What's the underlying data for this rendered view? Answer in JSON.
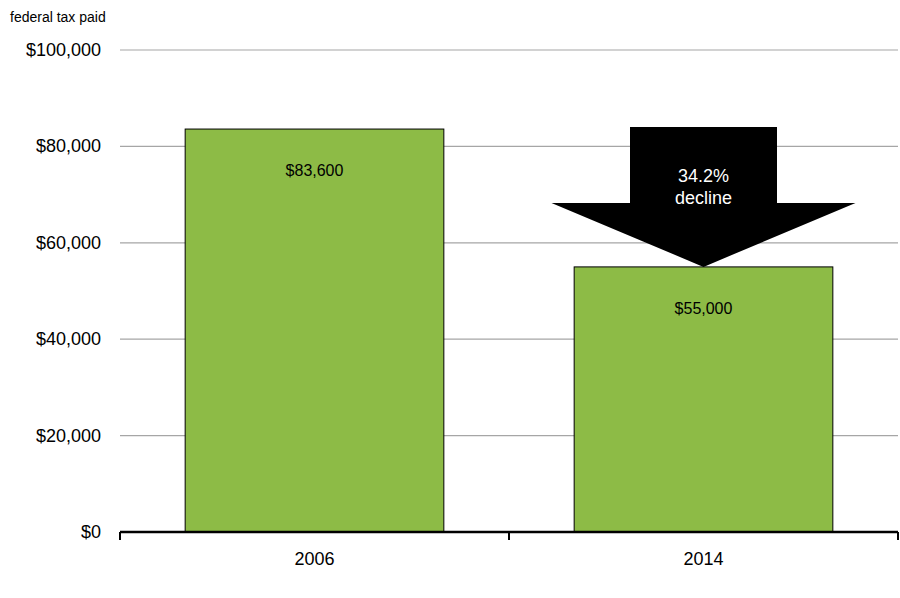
{
  "chart_data": {
    "type": "bar",
    "y_label": "federal tax paid",
    "categories": [
      "2006",
      "2014"
    ],
    "values": [
      83600,
      55000
    ],
    "value_labels": [
      "$83,600",
      "$55,000"
    ],
    "data_labels": true,
    "color": "#8dbb46",
    "ylim": [
      0,
      100000
    ],
    "yticks": [
      {
        "value": 0,
        "label": "$0"
      },
      {
        "value": 20000,
        "label": "$20,000"
      },
      {
        "value": 40000,
        "label": "$40,000"
      },
      {
        "value": 60000,
        "label": "$60,000"
      },
      {
        "value": 80000,
        "label": "$80,000"
      },
      {
        "value": 100000,
        "label": "$100,000"
      }
    ],
    "grid": true,
    "annotation": "34.2% decline"
  }
}
